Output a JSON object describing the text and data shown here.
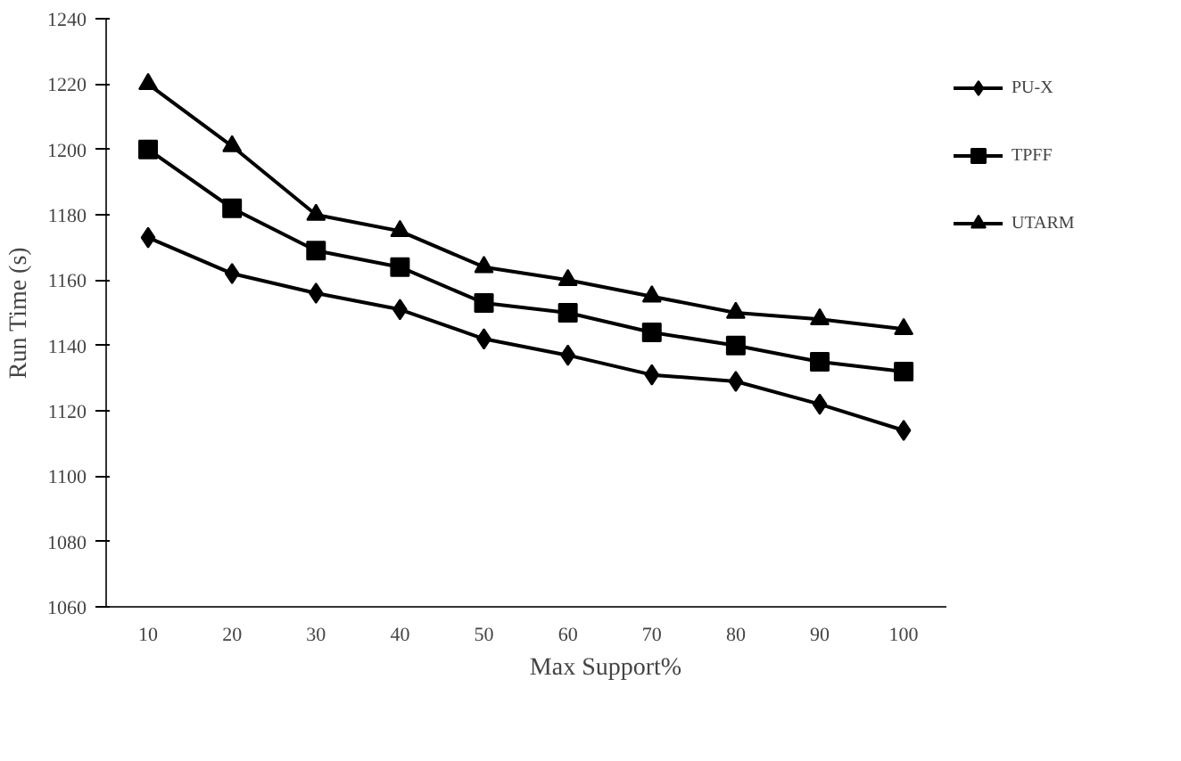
{
  "chart_data": {
    "type": "line",
    "xlabel": "Max Support%",
    "ylabel": "Run Time (s)",
    "categories": [
      "10",
      "20",
      "30",
      "40",
      "50",
      "60",
      "70",
      "80",
      "90",
      "100"
    ],
    "series": [
      {
        "name": "PU-X",
        "color": "#000000",
        "marker": "diamond",
        "values": [
          1173,
          1162,
          1156,
          1151,
          1142,
          1137,
          1131,
          1129,
          1122,
          1114
        ]
      },
      {
        "name": "TPFF",
        "color": "#000000",
        "marker": "square",
        "values": [
          1200,
          1182,
          1169,
          1164,
          1153,
          1150,
          1144,
          1140,
          1135,
          1132
        ]
      },
      {
        "name": "UTARM",
        "color": "#000000",
        "marker": "triangle",
        "values": [
          1220,
          1201,
          1180,
          1175,
          1164,
          1160,
          1155,
          1150,
          1148,
          1145
        ]
      }
    ],
    "ylim": [
      1060,
      1240
    ],
    "yticks": [
      1060,
      1080,
      1100,
      1120,
      1140,
      1160,
      1180,
      1200,
      1220,
      1240
    ],
    "grid": false,
    "legend": "right",
    "line_style": "solid"
  }
}
